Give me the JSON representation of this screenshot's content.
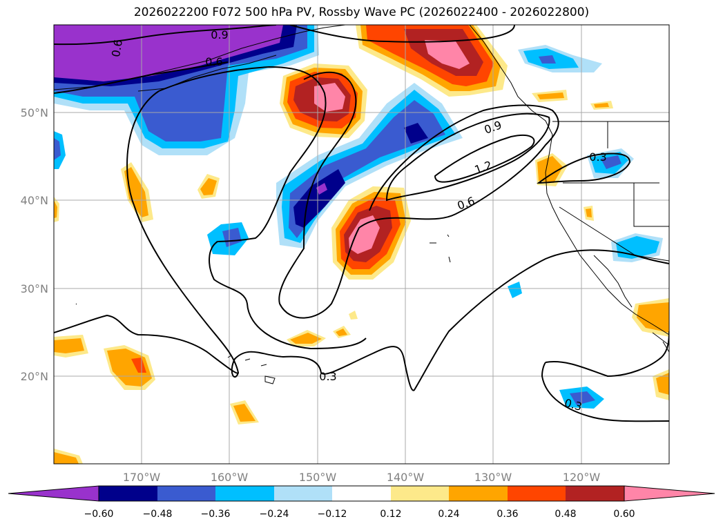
{
  "title": "2026022200 F072 500 hPa PV, Rossby Wave PC (2026022400 - 2026022800)",
  "axes": {
    "lat_ticks": [
      "50°N",
      "40°N",
      "30°N",
      "20°N"
    ],
    "lon_ticks": [
      "170°W",
      "160°W",
      "150°W",
      "140°W",
      "130°W",
      "120°W"
    ]
  },
  "contour_labels": [
    "0.9",
    "0.6",
    "0.9",
    "1.2",
    "0.6",
    "0.3",
    "0.3",
    "0.3",
    "0.6"
  ],
  "colorbar": {
    "ticks": [
      "−0.60",
      "−0.48",
      "−0.36",
      "−0.24",
      "−0.12",
      "0.12",
      "0.24",
      "0.36",
      "0.48",
      "0.60"
    ],
    "colors": [
      "#9932cc",
      "#00008b",
      "#3a5bd0",
      "#00bfff",
      "#b0e0f8",
      "#ffffff",
      "#fde98a",
      "#ffa500",
      "#ff4500",
      "#b22222",
      "#ff85a8"
    ]
  },
  "legend_colors": {
    "neg5": "#9932cc",
    "neg4": "#00008b",
    "neg3": "#3a5bd0",
    "neg2": "#00bfff",
    "neg1": "#b0e0f8",
    "pos1": "#fde98a",
    "pos2": "#ffa500",
    "pos3": "#ff4500",
    "pos4": "#b22222",
    "pos5": "#ff85a8"
  }
}
